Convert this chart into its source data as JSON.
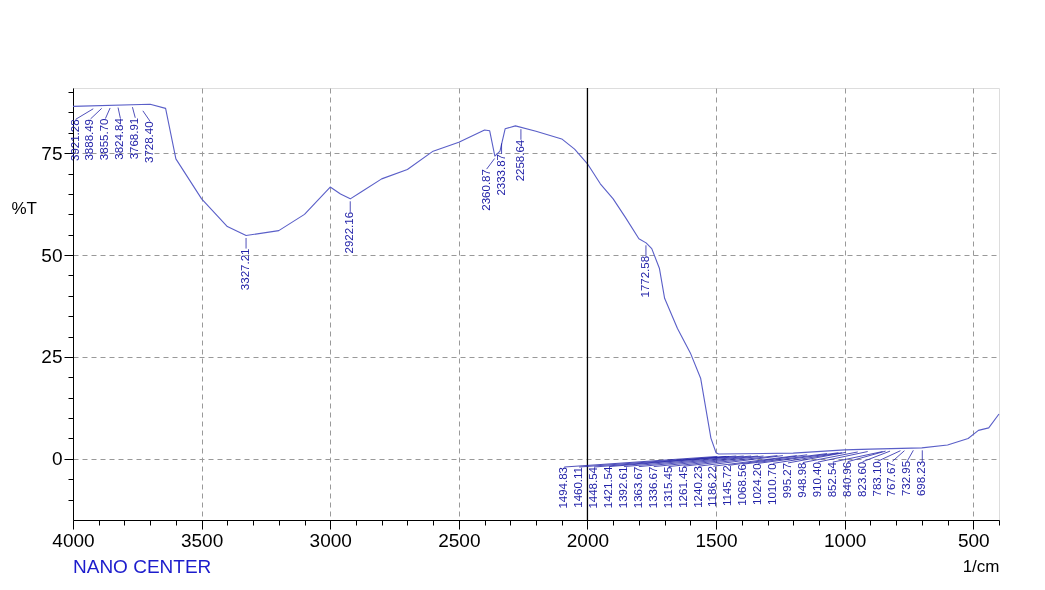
{
  "chart_data": {
    "type": "line",
    "xlabel": "1/cm",
    "ylabel": "%T",
    "x": [
      4000,
      3700,
      3640,
      3600,
      3500,
      3400,
      3327,
      3200,
      3100,
      3000,
      2960,
      2922,
      2880,
      2800,
      2700,
      2600,
      2500,
      2400,
      2380,
      2360,
      2340,
      2320,
      2280,
      2200,
      2100,
      2050,
      2000,
      1950,
      1900,
      1850,
      1800,
      1772,
      1750,
      1720,
      1700,
      1650,
      1600,
      1560,
      1520,
      1500,
      1490,
      1200,
      1000,
      900,
      700,
      600,
      520,
      480,
      440,
      400
    ],
    "series": [
      {
        "color": "#5a5fc8",
        "values": [
          86.5,
          87,
          86,
          73.6,
          63.8,
          57,
          54.8,
          56,
          60,
          66.7,
          65,
          63.8,
          65.5,
          68.7,
          71,
          75.5,
          77.7,
          80.7,
          80.5,
          74.3,
          75.5,
          81,
          81.7,
          80.4,
          78.5,
          76,
          72.4,
          67.5,
          63.8,
          59,
          54,
          53,
          51.6,
          46.7,
          39.4,
          32,
          26,
          19.8,
          5.1,
          1.5,
          1.2,
          1.4,
          2.2,
          2.4,
          2.7,
          3.4,
          5,
          7,
          7.6,
          11
        ]
      }
    ],
    "xlim": [
      4000,
      400
    ],
    "xticks": [
      4000,
      {
        "value": 3900,
        "label": null
      },
      {
        "value": 3800,
        "label": null
      },
      {
        "value": 3700,
        "label": null
      },
      {
        "value": 3600,
        "label": null
      },
      3500,
      {
        "value": 3400,
        "label": null
      },
      {
        "value": 3300,
        "label": null
      },
      {
        "value": 3200,
        "label": null
      },
      {
        "value": 3100,
        "label": null
      },
      3000,
      {
        "value": 2900,
        "label": null
      },
      {
        "value": 2800,
        "label": null
      },
      {
        "value": 2700,
        "label": null
      },
      {
        "value": 2600,
        "label": null
      },
      2500,
      {
        "value": 2400,
        "label": null
      },
      {
        "value": 2300,
        "label": null
      },
      {
        "value": 2200,
        "label": null
      },
      {
        "value": 2100,
        "label": null
      },
      2000,
      {
        "value": 1900,
        "label": null
      },
      {
        "value": 1800,
        "label": null
      },
      {
        "value": 1700,
        "label": null
      },
      {
        "value": 1600,
        "label": null
      },
      1500,
      {
        "value": 1400,
        "label": null
      },
      {
        "value": 1300,
        "label": null
      },
      {
        "value": 1200,
        "label": null
      },
      {
        "value": 1100,
        "label": null
      },
      1000,
      {
        "value": 900,
        "label": null
      },
      {
        "value": 800,
        "label": null
      },
      {
        "value": 700,
        "label": null
      },
      {
        "value": 600,
        "label": null
      },
      500,
      {
        "value": 400,
        "label": null
      }
    ],
    "ylim": [
      -15,
      91
    ],
    "yticks": [
      {
        "value": -10,
        "label": null
      },
      {
        "value": -5,
        "label": null
      },
      0,
      {
        "value": 5,
        "label": null
      },
      {
        "value": 10,
        "label": null
      },
      {
        "value": 15,
        "label": null
      },
      {
        "value": 20,
        "label": null
      },
      25,
      {
        "value": 30,
        "label": null
      },
      {
        "value": 35,
        "label": null
      },
      {
        "value": 40,
        "label": null
      },
      {
        "value": 45,
        "label": null
      },
      50,
      {
        "value": 55,
        "label": null
      },
      {
        "value": 60,
        "label": null
      },
      {
        "value": 65,
        "label": null
      },
      {
        "value": 70,
        "label": null
      },
      75,
      {
        "value": 80,
        "label": null
      },
      {
        "value": 85,
        "label": null
      },
      {
        "value": 90,
        "label": null
      }
    ],
    "grid": true,
    "legend": false,
    "ref_lines": [
      {
        "axis": "x",
        "value": 2000,
        "color": "#000000"
      }
    ],
    "annotations": [
      {
        "text": "3921.28",
        "x": 3921.28,
        "y": 86.5
      },
      {
        "text": "3888.49",
        "x": 3888.49,
        "y": 86.6
      },
      {
        "text": "3855.70",
        "x": 3855.7,
        "y": 86.7
      },
      {
        "text": "3824.84",
        "x": 3824.84,
        "y": 86.8
      },
      {
        "text": "3768.91",
        "x": 3768.91,
        "y": 86.9
      },
      {
        "text": "3728.40",
        "x": 3728.4,
        "y": 86.0
      },
      {
        "text": "3327.21",
        "x": 3327.21,
        "y": 54.8
      },
      {
        "text": "2922.16",
        "x": 2922.16,
        "y": 63.8
      },
      {
        "text": "2360.87",
        "x": 2360.87,
        "y": 74.3
      },
      {
        "text": "2333.87",
        "x": 2333.87,
        "y": 78
      },
      {
        "text": "2258.64",
        "x": 2258.64,
        "y": 81.5
      },
      {
        "text": "1772.58",
        "x": 1772.58,
        "y": 53
      },
      {
        "text": "1494.83",
        "x": 1494.83,
        "y": 1.2
      },
      {
        "text": "1460.11",
        "x": 1460.11,
        "y": 1.2
      },
      {
        "text": "1448.54",
        "x": 1448.54,
        "y": 1.2
      },
      {
        "text": "1421.54",
        "x": 1421.54,
        "y": 1.3
      },
      {
        "text": "1392.61",
        "x": 1392.61,
        "y": 1.3
      },
      {
        "text": "1363.67",
        "x": 1363.67,
        "y": 1.3
      },
      {
        "text": "1336.67",
        "x": 1336.67,
        "y": 1.3
      },
      {
        "text": "1315.45",
        "x": 1315.45,
        "y": 1.3
      },
      {
        "text": "1261.45",
        "x": 1261.45,
        "y": 1.4
      },
      {
        "text": "1240.23",
        "x": 1240.23,
        "y": 1.4
      },
      {
        "text": "1186.22",
        "x": 1186.22,
        "y": 1.4
      },
      {
        "text": "1145.72",
        "x": 1145.72,
        "y": 1.6
      },
      {
        "text": "1068.56",
        "x": 1068.56,
        "y": 1.9
      },
      {
        "text": "1024.20",
        "x": 1024.2,
        "y": 2.1
      },
      {
        "text": "1010.70",
        "x": 1010.7,
        "y": 2.1
      },
      {
        "text": "995.27",
        "x": 995.27,
        "y": 2.2
      },
      {
        "text": "948.98",
        "x": 948.98,
        "y": 2.3
      },
      {
        "text": "910.40",
        "x": 910.4,
        "y": 2.4
      },
      {
        "text": "852.54",
        "x": 852.54,
        "y": 2.4
      },
      {
        "text": "840.96",
        "x": 840.96,
        "y": 2.5
      },
      {
        "text": "823.60",
        "x": 823.6,
        "y": 2.5
      },
      {
        "text": "783.10",
        "x": 783.1,
        "y": 2.6
      },
      {
        "text": "767.67",
        "x": 767.67,
        "y": 2.6
      },
      {
        "text": "732.95",
        "x": 732.95,
        "y": 2.7
      },
      {
        "text": "698.23",
        "x": 698.23,
        "y": 2.7
      },
      "NANO CENTER"
    ]
  }
}
